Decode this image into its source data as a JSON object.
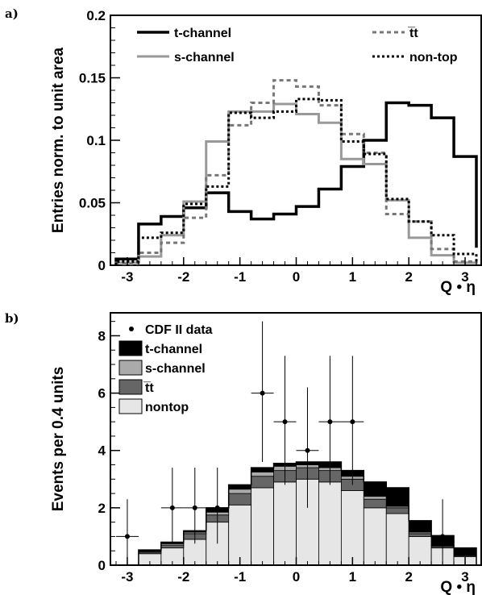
{
  "chart_data": [
    {
      "panel": "a)",
      "type": "line",
      "style": "step-histogram",
      "xlabel": "Q • η",
      "ylabel": "Entries norm. to unit area",
      "xlim": [
        -3.3,
        3.3
      ],
      "ylim": [
        0,
        0.2
      ],
      "xticks": [
        -3,
        -2,
        -1,
        0,
        1,
        2,
        3
      ],
      "yticks": [
        0,
        0.05,
        0.1,
        0.15,
        0.2
      ],
      "ytick_labels": [
        "0",
        "0.05",
        "0.1",
        "0.15",
        "0.2"
      ],
      "bin_edges": [
        -3.2,
        -2.8,
        -2.4,
        -2.0,
        -1.6,
        -1.2,
        -0.8,
        -0.4,
        0.0,
        0.4,
        0.8,
        1.2,
        1.6,
        2.0,
        2.4,
        2.8,
        3.2
      ],
      "grid": false,
      "legend": "top",
      "series": [
        {
          "name": "t-channel",
          "color": "#000000",
          "dash": "",
          "width": 3.5,
          "values": [
            0.005,
            0.033,
            0.039,
            0.046,
            0.058,
            0.043,
            0.037,
            0.041,
            0.047,
            0.061,
            0.079,
            0.1,
            0.13,
            0.128,
            0.118,
            0.087,
            0.014
          ]
        },
        {
          "name": "s-channel",
          "color": "#999999",
          "dash": "",
          "width": 3,
          "values": [
            0.002,
            0.007,
            0.024,
            0.051,
            0.099,
            0.123,
            0.123,
            0.129,
            0.121,
            0.114,
            0.085,
            0.081,
            0.052,
            0.022,
            0.008,
            0.002,
            0.001
          ]
        },
        {
          "name": "t̅t",
          "color": "#777777",
          "dash": "5,4",
          "width": 3,
          "values": [
            0.001,
            0.01,
            0.018,
            0.038,
            0.072,
            0.112,
            0.13,
            0.148,
            0.143,
            0.128,
            0.105,
            0.09,
            0.041,
            0.035,
            0.013,
            0.003,
            0.001
          ]
        },
        {
          "name": "non-top",
          "color": "#000000",
          "dash": "3,3",
          "width": 3,
          "values": [
            0.003,
            0.022,
            0.026,
            0.049,
            0.063,
            0.122,
            0.118,
            0.123,
            0.133,
            0.132,
            0.099,
            0.089,
            0.053,
            0.035,
            0.024,
            0.009,
            0.002
          ]
        }
      ]
    },
    {
      "panel": "b)",
      "type": "bar",
      "style": "stacked-histogram-with-data",
      "xlabel": "Q • η",
      "ylabel": "Events per 0.4 units",
      "xlim": [
        -3.3,
        3.3
      ],
      "ylim": [
        0,
        8.8
      ],
      "xticks": [
        -3,
        -2,
        -1,
        0,
        1,
        2,
        3
      ],
      "yticks": [
        0,
        2,
        4,
        6,
        8
      ],
      "ytick_labels": [
        "0",
        "2",
        "4",
        "6",
        "8"
      ],
      "bin_edges": [
        -3.2,
        -2.8,
        -2.4,
        -2.0,
        -1.6,
        -1.2,
        -0.8,
        -0.4,
        0.0,
        0.4,
        0.8,
        1.2,
        1.6,
        2.0,
        2.4,
        2.8,
        3.2
      ],
      "grid": false,
      "legend": "top-left",
      "stack": [
        {
          "name": "nontop",
          "color": "#e6e6e6",
          "values": [
            0,
            0.4,
            0.6,
            0.9,
            1.5,
            2.1,
            2.7,
            2.9,
            3.0,
            2.9,
            2.6,
            2.0,
            1.8,
            1.0,
            0.6,
            0.3,
            0
          ]
        },
        {
          "name": "t̅t",
          "color": "#666666",
          "values": [
            0,
            0.05,
            0.1,
            0.2,
            0.25,
            0.4,
            0.4,
            0.4,
            0.4,
            0.4,
            0.4,
            0.3,
            0.2,
            0.1,
            0.05,
            0.03,
            0
          ]
        },
        {
          "name": "s-channel",
          "color": "#aaaaaa",
          "values": [
            0,
            0.03,
            0.05,
            0.05,
            0.1,
            0.15,
            0.15,
            0.15,
            0.1,
            0.1,
            0.1,
            0.1,
            0.05,
            0.05,
            0.03,
            0.02,
            0
          ]
        },
        {
          "name": "t-channel",
          "color": "#000000",
          "values": [
            0,
            0.05,
            0.05,
            0.05,
            0.15,
            0.15,
            0.15,
            0.1,
            0.1,
            0.2,
            0.2,
            0.5,
            0.65,
            0.4,
            0.35,
            0.25,
            0
          ]
        }
      ],
      "data_series": {
        "name": "CDF II data",
        "color": "#000000",
        "points": [
          {
            "x": -3.0,
            "y": 1
          },
          {
            "x": -2.2,
            "y": 2
          },
          {
            "x": -1.8,
            "y": 2
          },
          {
            "x": -1.4,
            "y": 2
          },
          {
            "x": -0.6,
            "y": 6
          },
          {
            "x": -0.2,
            "y": 5
          },
          {
            "x": 0.2,
            "y": 4
          },
          {
            "x": 0.6,
            "y": 5
          },
          {
            "x": 1.0,
            "y": 5
          },
          {
            "x": 2.6,
            "y": 1
          }
        ],
        "errors": [
          [
            1,
            1.3
          ],
          [
            1.25,
            1.4
          ],
          [
            1.25,
            1.4
          ],
          [
            1.25,
            1.4
          ],
          [
            2.4,
            2.5
          ],
          [
            2.2,
            2.3
          ],
          [
            2.0,
            2.2
          ],
          [
            2.2,
            2.3
          ],
          [
            2.2,
            2.3
          ],
          [
            1,
            1.3
          ]
        ],
        "x_error": 0.2
      },
      "legend_order": [
        "CDF II data",
        "t-channel",
        "s-channel",
        "t̅t",
        "nontop"
      ]
    }
  ]
}
